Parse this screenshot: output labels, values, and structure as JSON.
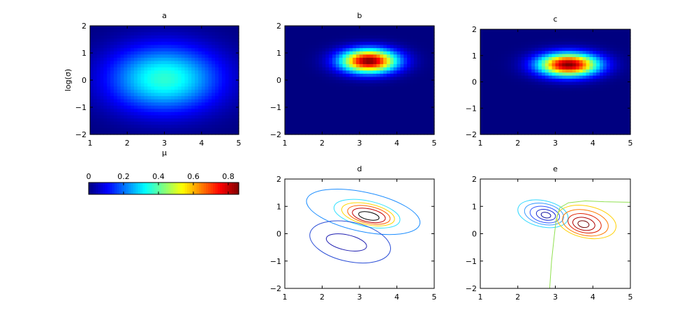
{
  "chart_data": [
    {
      "type": "heatmap",
      "title": "a",
      "xlabel": "μ",
      "ylabel": "log(σ)",
      "xlim": [
        1,
        5
      ],
      "ylim": [
        -2,
        2
      ],
      "xticks": [
        "1",
        "2",
        "3",
        "4",
        "5"
      ],
      "yticks": [
        "−2",
        "−1",
        "0",
        "1",
        "2"
      ],
      "colormap": "jet",
      "clim": [
        0,
        0.86
      ],
      "peak": {
        "x": 3.0,
        "y": 0.05,
        "value": 0.36
      },
      "spread": {
        "x": 1.05,
        "y": 0.85
      }
    },
    {
      "type": "heatmap",
      "title": "b",
      "xlabel": "",
      "ylabel": "",
      "xlim": [
        1,
        5
      ],
      "ylim": [
        -2,
        2
      ],
      "xticks": [
        "1",
        "2",
        "3",
        "4",
        "5"
      ],
      "yticks": [
        "−2",
        "−1",
        "0",
        "1",
        "2"
      ],
      "colormap": "jet",
      "clim": [
        0,
        0.86
      ],
      "peak": {
        "x": 3.25,
        "y": 0.7,
        "value": 0.86
      },
      "spread": {
        "x": 0.52,
        "y": 0.3
      }
    },
    {
      "type": "heatmap",
      "title": "c",
      "xlabel": "",
      "ylabel": "",
      "xlim": [
        1,
        5
      ],
      "ylim": [
        -2,
        2
      ],
      "xticks": [
        "1",
        "2",
        "3",
        "4",
        "5"
      ],
      "yticks": [
        "−2",
        "−1",
        "0",
        "1",
        "2"
      ],
      "colormap": "jet",
      "clim": [
        0,
        0.86
      ],
      "peak": {
        "x": 3.35,
        "y": 0.65,
        "value": 0.86
      },
      "spread": {
        "x": 0.55,
        "y": 0.3
      }
    },
    {
      "type": "contour",
      "title": "d",
      "xlabel": "",
      "ylabel": "",
      "xlim": [
        1,
        5
      ],
      "ylim": [
        -2,
        2
      ],
      "xticks": [
        "1",
        "2",
        "3",
        "4",
        "5"
      ],
      "yticks": [
        "−2",
        "−1",
        "0",
        "1",
        "2"
      ],
      "levels": [
        {
          "center": [
            3.25,
            0.65
          ],
          "radii": [
            0.28,
            0.14
          ],
          "color": "#000000"
        },
        {
          "center": [
            3.25,
            0.67
          ],
          "radii": [
            0.45,
            0.24
          ],
          "color": "#c00000"
        },
        {
          "center": [
            3.25,
            0.69
          ],
          "radii": [
            0.58,
            0.31
          ],
          "color": "#ff6000"
        },
        {
          "center": [
            3.23,
            0.71
          ],
          "radii": [
            0.72,
            0.38
          ],
          "color": "#ffd700"
        },
        {
          "center": [
            3.2,
            0.73
          ],
          "radii": [
            0.9,
            0.47
          ],
          "color": "#30e0ff"
        },
        {
          "center": [
            3.1,
            0.8
          ],
          "radii": [
            1.55,
            0.72
          ],
          "color": "#1a8cff"
        },
        {
          "center": [
            2.65,
            -0.32
          ],
          "radii": [
            0.55,
            0.28
          ],
          "color": "#1c1cb0"
        },
        {
          "center": [
            2.75,
            -0.3
          ],
          "radii": [
            1.1,
            0.72
          ],
          "color": "#2a4dd6"
        }
      ]
    },
    {
      "type": "contour",
      "title": "e",
      "xlabel": "",
      "ylabel": "",
      "xlim": [
        1,
        5
      ],
      "ylim": [
        -2,
        2
      ],
      "xticks": [
        "1",
        "2",
        "3",
        "4",
        "5"
      ],
      "yticks": [
        "−2",
        "−1",
        "0",
        "1",
        "2"
      ],
      "levels": [
        {
          "center": [
            2.75,
            0.68
          ],
          "radii": [
            0.13,
            0.1
          ],
          "color": "#1010a0"
        },
        {
          "center": [
            2.75,
            0.69
          ],
          "radii": [
            0.26,
            0.19
          ],
          "color": "#1a2bd0"
        },
        {
          "center": [
            2.72,
            0.7
          ],
          "radii": [
            0.4,
            0.29
          ],
          "color": "#2f55ff"
        },
        {
          "center": [
            2.7,
            0.72
          ],
          "radii": [
            0.53,
            0.38
          ],
          "color": "#3b9cff"
        },
        {
          "center": [
            2.67,
            0.73
          ],
          "radii": [
            0.68,
            0.48
          ],
          "color": "#30d8ff"
        },
        {
          "center": [
            3.75,
            0.35
          ],
          "radii": [
            0.15,
            0.12
          ],
          "color": "#700000"
        },
        {
          "center": [
            3.76,
            0.36
          ],
          "radii": [
            0.3,
            0.23
          ],
          "color": "#b00000"
        },
        {
          "center": [
            3.78,
            0.38
          ],
          "radii": [
            0.45,
            0.34
          ],
          "color": "#e02000"
        },
        {
          "center": [
            3.8,
            0.4
          ],
          "radii": [
            0.62,
            0.46
          ],
          "color": "#ff7a00"
        },
        {
          "center": [
            3.83,
            0.43
          ],
          "radii": [
            0.8,
            0.58
          ],
          "color": "#ffd000"
        }
      ],
      "zero_line": {
        "color": "#90e050",
        "points": [
          [
            2.85,
            -2.0
          ],
          [
            2.9,
            -1.0
          ],
          [
            2.97,
            -0.1
          ],
          [
            3.02,
            0.5
          ],
          [
            3.12,
            0.95
          ],
          [
            3.35,
            1.13
          ],
          [
            3.8,
            1.2
          ],
          [
            4.3,
            1.17
          ],
          [
            5.0,
            1.15
          ]
        ]
      }
    }
  ],
  "colorbar": {
    "ticks": [
      "0",
      "0.2",
      "0.4",
      "0.6",
      "0.8"
    ],
    "values": [
      0,
      0.2,
      0.4,
      0.6,
      0.8
    ],
    "range": [
      0,
      0.86
    ],
    "colormap": "jet"
  }
}
